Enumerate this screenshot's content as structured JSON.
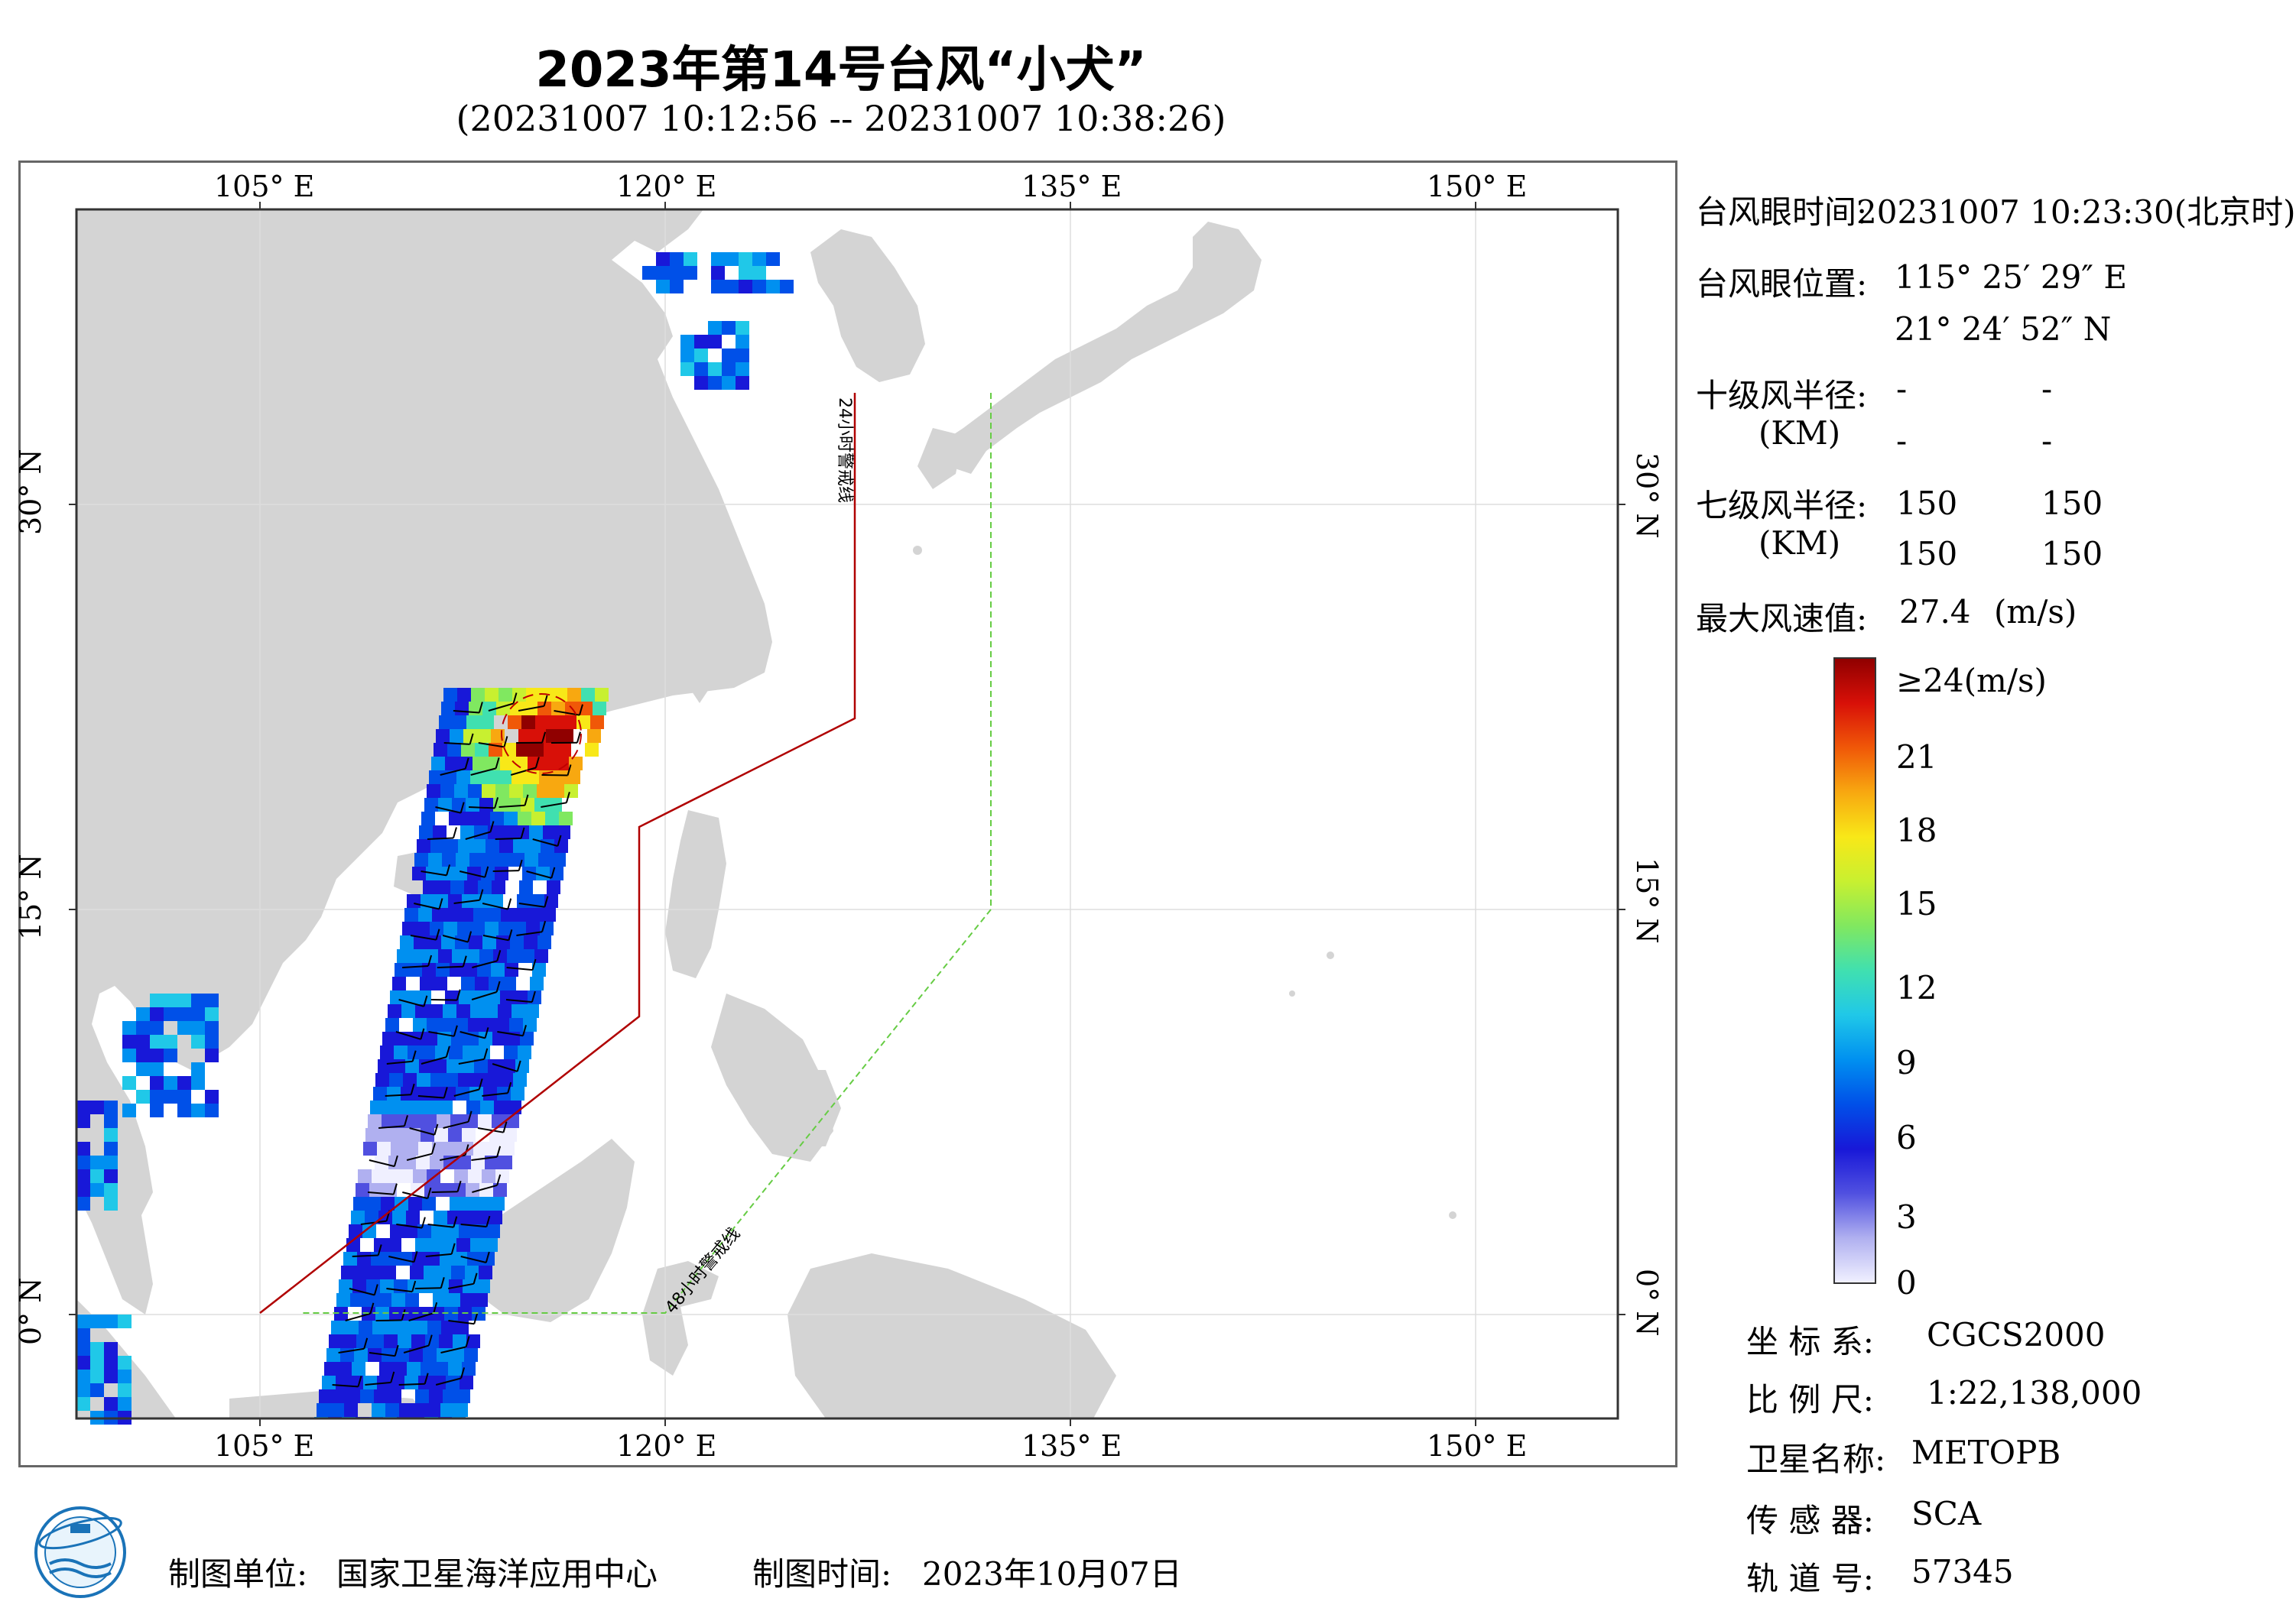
{
  "title": "2023年第14号台风“小犬”",
  "subtitle": "(20231007 10:12:56 -- 20231007 10:38:26)",
  "map": {
    "lon_ticks": [
      "105° E",
      "120° E",
      "135° E",
      "150° E"
    ],
    "lat_ticks": [
      "30° N",
      "15° N",
      "0° N"
    ],
    "warn24_label": "24小时警戒线",
    "warn48_label": "48小时警戒线",
    "colors": {
      "land": "#d4d4d4",
      "sea": "#ffffff",
      "warn24": "#b00000",
      "warn48": "#66cc44",
      "grid": "#dddddd"
    }
  },
  "info": {
    "eye_time_label": "台风眼时间:",
    "eye_time_value": "20231007 10:23:30(北京时)",
    "eye_pos_label": "台风眼位置:",
    "eye_lon": "115° 25′ 29″ E",
    "eye_lat": "21° 24′ 52″ N",
    "r10_label": "十级风半径:",
    "r10_unit": "(KM)",
    "r10_values": [
      "-",
      "-",
      "-",
      "-"
    ],
    "r7_label": "七级风半径:",
    "r7_unit": "(KM)",
    "r7_values": [
      "150",
      "150",
      "150",
      "150"
    ],
    "max_wind_label": "最大风速值:",
    "max_wind_value": "27.4",
    "max_wind_unit": "(m/s)"
  },
  "legend": {
    "ticks": [
      "≥24(m/s)",
      "21",
      "18",
      "15",
      "12",
      "9",
      "6",
      "3",
      "0"
    ],
    "colors": [
      "#f0f0ff",
      "#b0b0f0",
      "#5050e0",
      "#1818d8",
      "#0050e8",
      "#0090f0",
      "#20c8e8",
      "#40e0b0",
      "#80e860",
      "#c8f030",
      "#f8e818",
      "#f8a810",
      "#f05808",
      "#d81008",
      "#900000"
    ]
  },
  "meta": {
    "crs_label": "坐 标 系:",
    "crs_value": "CGCS2000",
    "scale_label": "比 例 尺:",
    "scale_value": "1:22,138,000",
    "sat_label": "卫星名称:",
    "sat_value": "METOPB",
    "sensor_label": "传 感 器:",
    "sensor_value": "SCA",
    "orbit_label": "轨 道 号:",
    "orbit_value": "57345"
  },
  "footer": {
    "maker_label": "制图单位:",
    "maker_value": "国家卫星海洋应用中心",
    "date_label": "制图时间:",
    "date_value": "2023年10月07日"
  }
}
